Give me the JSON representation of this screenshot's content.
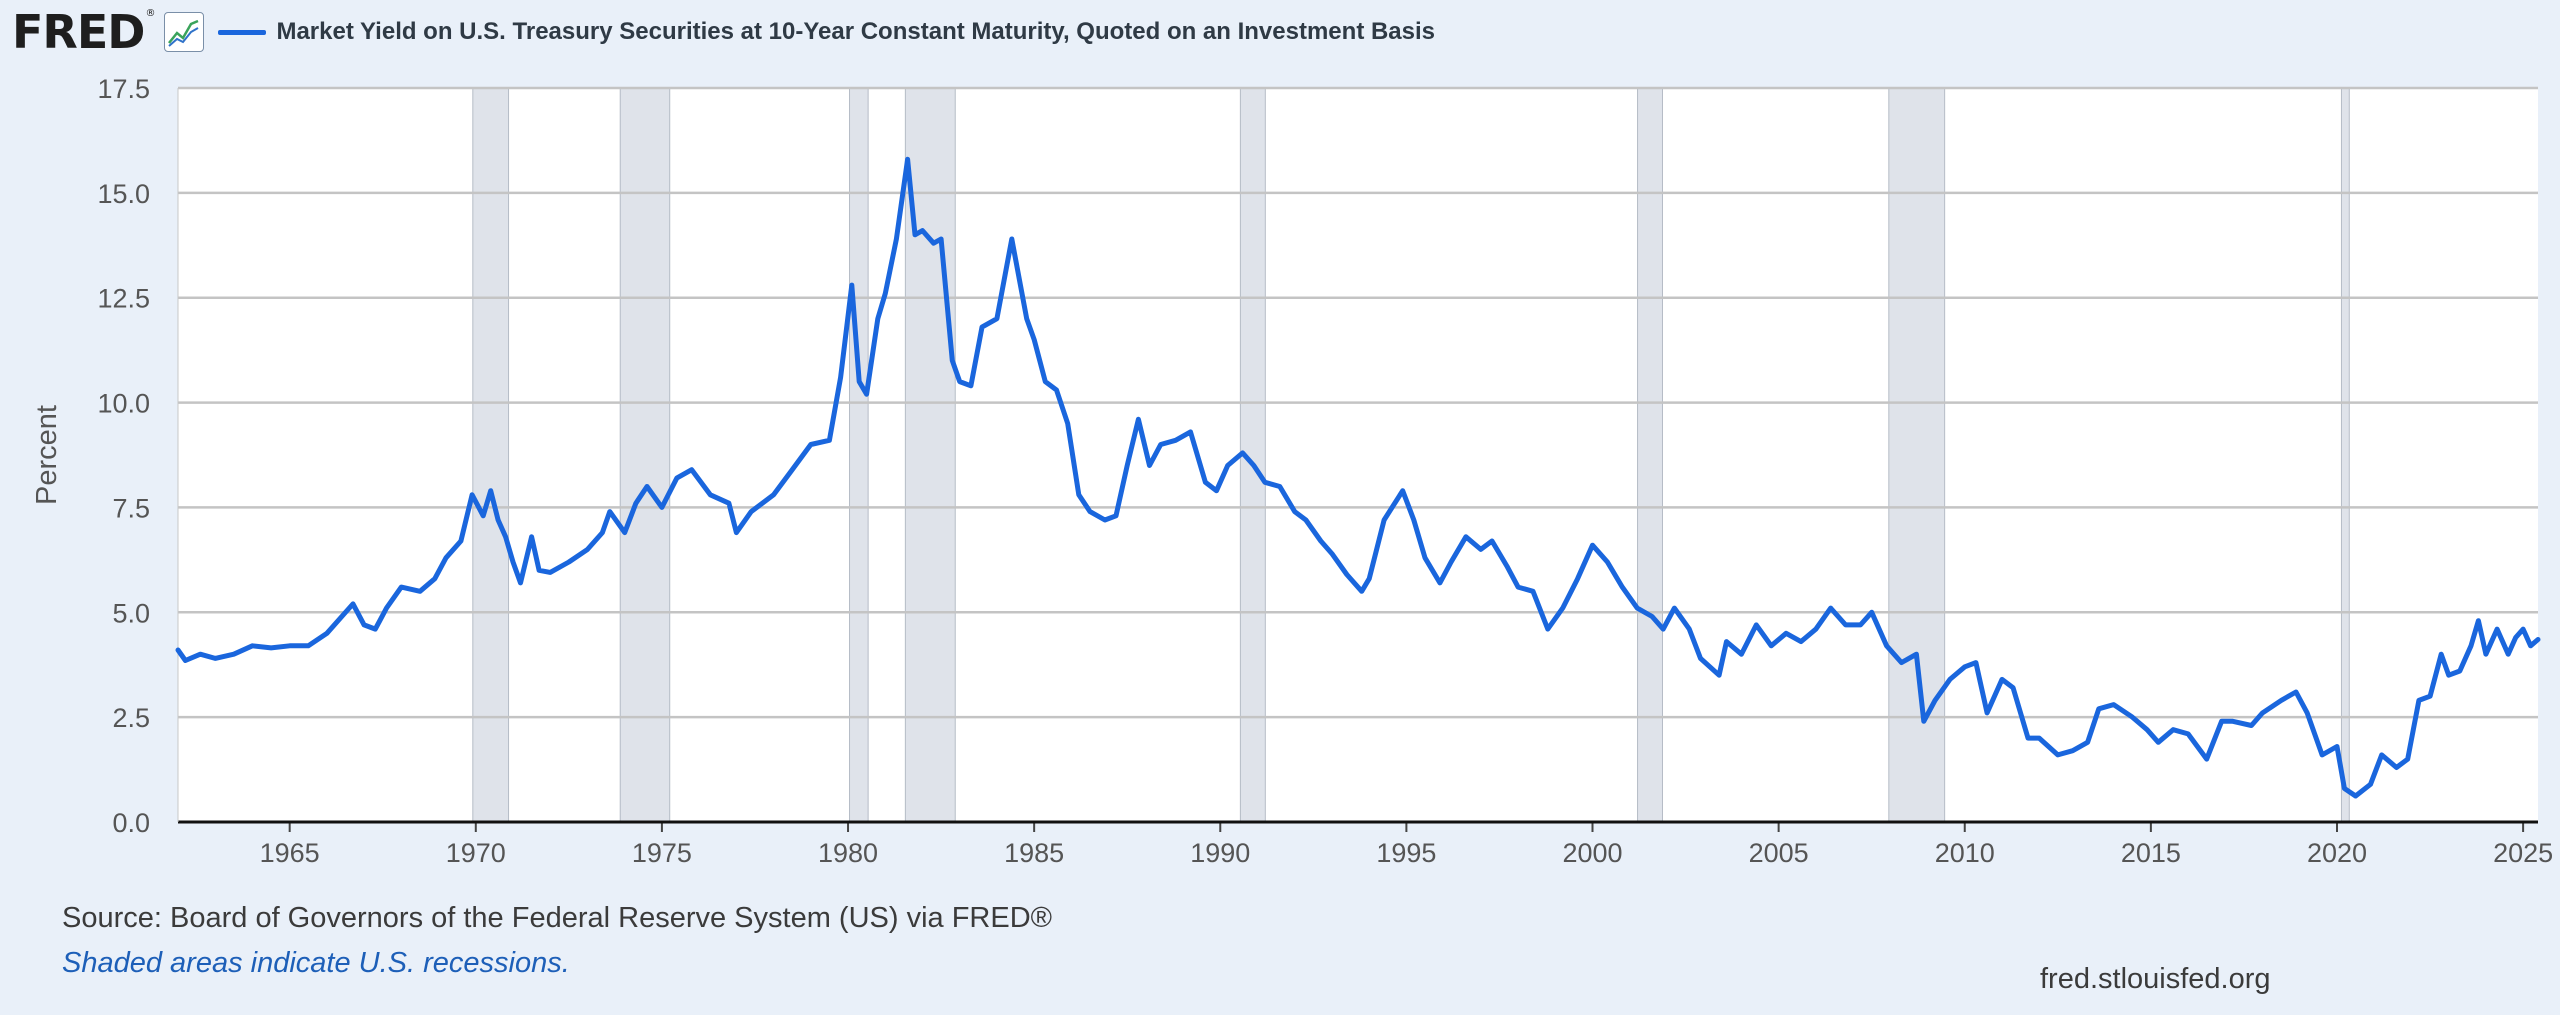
{
  "header": {
    "logo_text": "FRED",
    "logo_mark": "®",
    "icon": "line-graph-icon",
    "series_title": "Market Yield on U.S. Treasury Securities at 10-Year Constant Maturity, Quoted on an Investment Basis"
  },
  "footer": {
    "source": "Source: Board of Governors of the Federal Reserve System (US) via FRED®",
    "note": "Shaded areas indicate U.S. recessions.",
    "site": "fred.stlouisfed.org"
  },
  "colors": {
    "line": "#1a66dd",
    "recession_fill": "#dfe3ea",
    "grid": "#c4c4c4",
    "plot_bg": "#ffffff",
    "page_bg": "#e9f0f9"
  },
  "chart_data": {
    "type": "line",
    "title": "Market Yield on U.S. Treasury Securities at 10-Year Constant Maturity, Quoted on an Investment Basis",
    "ylabel": "Percent",
    "xlabel": "",
    "xlim": [
      1962.0,
      2025.4
    ],
    "ylim": [
      0,
      17.5
    ],
    "yticks": [
      "0.0",
      "2.5",
      "5.0",
      "7.5",
      "10.0",
      "12.5",
      "15.0",
      "17.5"
    ],
    "xticks": [
      "1965",
      "1970",
      "1975",
      "1980",
      "1985",
      "1990",
      "1995",
      "2000",
      "2005",
      "2010",
      "2015",
      "2020",
      "2025"
    ],
    "grid": true,
    "legend": "top-left",
    "recessions": [
      [
        1969.92,
        1970.88
      ],
      [
        1973.88,
        1975.21
      ],
      [
        1980.04,
        1980.54
      ],
      [
        1981.54,
        1982.88
      ],
      [
        1990.54,
        1991.21
      ],
      [
        2001.21,
        2001.88
      ],
      [
        2007.96,
        2009.46
      ],
      [
        2020.12,
        2020.33
      ]
    ],
    "series": [
      {
        "values": [
          [
            1962.0,
            4.1
          ],
          [
            1962.2,
            3.85
          ],
          [
            1962.6,
            4.0
          ],
          [
            1963.0,
            3.9
          ],
          [
            1963.5,
            4.0
          ],
          [
            1964.0,
            4.2
          ],
          [
            1964.5,
            4.15
          ],
          [
            1965.0,
            4.2
          ],
          [
            1965.5,
            4.2
          ],
          [
            1966.0,
            4.5
          ],
          [
            1966.4,
            4.9
          ],
          [
            1966.7,
            5.2
          ],
          [
            1967.0,
            4.7
          ],
          [
            1967.3,
            4.6
          ],
          [
            1967.6,
            5.1
          ],
          [
            1968.0,
            5.6
          ],
          [
            1968.5,
            5.5
          ],
          [
            1968.9,
            5.8
          ],
          [
            1969.2,
            6.3
          ],
          [
            1969.6,
            6.7
          ],
          [
            1969.9,
            7.8
          ],
          [
            1970.2,
            7.3
          ],
          [
            1970.4,
            7.9
          ],
          [
            1970.6,
            7.2
          ],
          [
            1970.8,
            6.8
          ],
          [
            1971.0,
            6.2
          ],
          [
            1971.2,
            5.7
          ],
          [
            1971.5,
            6.8
          ],
          [
            1971.7,
            6.0
          ],
          [
            1972.0,
            5.95
          ],
          [
            1972.5,
            6.2
          ],
          [
            1973.0,
            6.5
          ],
          [
            1973.4,
            6.9
          ],
          [
            1973.6,
            7.4
          ],
          [
            1974.0,
            6.9
          ],
          [
            1974.3,
            7.6
          ],
          [
            1974.6,
            8.0
          ],
          [
            1975.0,
            7.5
          ],
          [
            1975.4,
            8.2
          ],
          [
            1975.8,
            8.4
          ],
          [
            1976.3,
            7.8
          ],
          [
            1976.8,
            7.6
          ],
          [
            1977.0,
            6.9
          ],
          [
            1977.4,
            7.4
          ],
          [
            1978.0,
            7.8
          ],
          [
            1978.5,
            8.4
          ],
          [
            1979.0,
            9.0
          ],
          [
            1979.5,
            9.1
          ],
          [
            1979.8,
            10.6
          ],
          [
            1980.1,
            12.8
          ],
          [
            1980.3,
            10.5
          ],
          [
            1980.5,
            10.2
          ],
          [
            1980.8,
            12.0
          ],
          [
            1981.0,
            12.6
          ],
          [
            1981.3,
            13.9
          ],
          [
            1981.6,
            15.8
          ],
          [
            1981.8,
            14.0
          ],
          [
            1982.0,
            14.1
          ],
          [
            1982.3,
            13.8
          ],
          [
            1982.5,
            13.9
          ],
          [
            1982.8,
            11.0
          ],
          [
            1983.0,
            10.5
          ],
          [
            1983.3,
            10.4
          ],
          [
            1983.6,
            11.8
          ],
          [
            1984.0,
            12.0
          ],
          [
            1984.4,
            13.9
          ],
          [
            1984.8,
            12.0
          ],
          [
            1985.0,
            11.5
          ],
          [
            1985.3,
            10.5
          ],
          [
            1985.6,
            10.3
          ],
          [
            1985.9,
            9.5
          ],
          [
            1986.2,
            7.8
          ],
          [
            1986.5,
            7.4
          ],
          [
            1986.9,
            7.2
          ],
          [
            1987.2,
            7.3
          ],
          [
            1987.5,
            8.5
          ],
          [
            1987.8,
            9.6
          ],
          [
            1988.1,
            8.5
          ],
          [
            1988.4,
            9.0
          ],
          [
            1988.8,
            9.1
          ],
          [
            1989.2,
            9.3
          ],
          [
            1989.6,
            8.1
          ],
          [
            1989.9,
            7.9
          ],
          [
            1990.2,
            8.5
          ],
          [
            1990.6,
            8.8
          ],
          [
            1990.9,
            8.5
          ],
          [
            1991.2,
            8.1
          ],
          [
            1991.6,
            8.0
          ],
          [
            1992.0,
            7.4
          ],
          [
            1992.3,
            7.2
          ],
          [
            1992.7,
            6.7
          ],
          [
            1993.0,
            6.4
          ],
          [
            1993.4,
            5.9
          ],
          [
            1993.8,
            5.5
          ],
          [
            1994.0,
            5.8
          ],
          [
            1994.4,
            7.2
          ],
          [
            1994.9,
            7.9
          ],
          [
            1995.2,
            7.2
          ],
          [
            1995.5,
            6.3
          ],
          [
            1995.9,
            5.7
          ],
          [
            1996.2,
            6.2
          ],
          [
            1996.6,
            6.8
          ],
          [
            1997.0,
            6.5
          ],
          [
            1997.3,
            6.7
          ],
          [
            1997.7,
            6.1
          ],
          [
            1998.0,
            5.6
          ],
          [
            1998.4,
            5.5
          ],
          [
            1998.8,
            4.6
          ],
          [
            1999.2,
            5.1
          ],
          [
            1999.6,
            5.8
          ],
          [
            2000.0,
            6.6
          ],
          [
            2000.4,
            6.2
          ],
          [
            2000.8,
            5.6
          ],
          [
            2001.2,
            5.1
          ],
          [
            2001.6,
            4.9
          ],
          [
            2001.9,
            4.6
          ],
          [
            2002.2,
            5.1
          ],
          [
            2002.6,
            4.6
          ],
          [
            2002.9,
            3.9
          ],
          [
            2003.4,
            3.5
          ],
          [
            2003.6,
            4.3
          ],
          [
            2004.0,
            4.0
          ],
          [
            2004.4,
            4.7
          ],
          [
            2004.8,
            4.2
          ],
          [
            2005.2,
            4.5
          ],
          [
            2005.6,
            4.3
          ],
          [
            2006.0,
            4.6
          ],
          [
            2006.4,
            5.1
          ],
          [
            2006.8,
            4.7
          ],
          [
            2007.2,
            4.7
          ],
          [
            2007.5,
            5.0
          ],
          [
            2007.9,
            4.2
          ],
          [
            2008.3,
            3.8
          ],
          [
            2008.7,
            4.0
          ],
          [
            2008.9,
            2.4
          ],
          [
            2009.2,
            2.9
          ],
          [
            2009.6,
            3.4
          ],
          [
            2010.0,
            3.7
          ],
          [
            2010.3,
            3.8
          ],
          [
            2010.6,
            2.6
          ],
          [
            2011.0,
            3.4
          ],
          [
            2011.3,
            3.2
          ],
          [
            2011.7,
            2.0
          ],
          [
            2012.0,
            2.0
          ],
          [
            2012.5,
            1.6
          ],
          [
            2012.9,
            1.7
          ],
          [
            2013.3,
            1.9
          ],
          [
            2013.6,
            2.7
          ],
          [
            2014.0,
            2.8
          ],
          [
            2014.5,
            2.5
          ],
          [
            2014.9,
            2.2
          ],
          [
            2015.2,
            1.9
          ],
          [
            2015.6,
            2.2
          ],
          [
            2016.0,
            2.1
          ],
          [
            2016.5,
            1.5
          ],
          [
            2016.9,
            2.4
          ],
          [
            2017.2,
            2.4
          ],
          [
            2017.7,
            2.3
          ],
          [
            2018.0,
            2.6
          ],
          [
            2018.5,
            2.9
          ],
          [
            2018.9,
            3.1
          ],
          [
            2019.2,
            2.6
          ],
          [
            2019.6,
            1.6
          ],
          [
            2020.0,
            1.8
          ],
          [
            2020.2,
            0.8
          ],
          [
            2020.5,
            0.62
          ],
          [
            2020.9,
            0.9
          ],
          [
            2021.2,
            1.6
          ],
          [
            2021.6,
            1.3
          ],
          [
            2021.9,
            1.5
          ],
          [
            2022.2,
            2.9
          ],
          [
            2022.5,
            3.0
          ],
          [
            2022.8,
            4.0
          ],
          [
            2023.0,
            3.5
          ],
          [
            2023.3,
            3.6
          ],
          [
            2023.6,
            4.2
          ],
          [
            2023.8,
            4.8
          ],
          [
            2024.0,
            4.0
          ],
          [
            2024.3,
            4.6
          ],
          [
            2024.6,
            4.0
          ],
          [
            2024.8,
            4.4
          ],
          [
            2025.0,
            4.6
          ],
          [
            2025.2,
            4.2
          ],
          [
            2025.4,
            4.35
          ]
        ]
      }
    ]
  }
}
